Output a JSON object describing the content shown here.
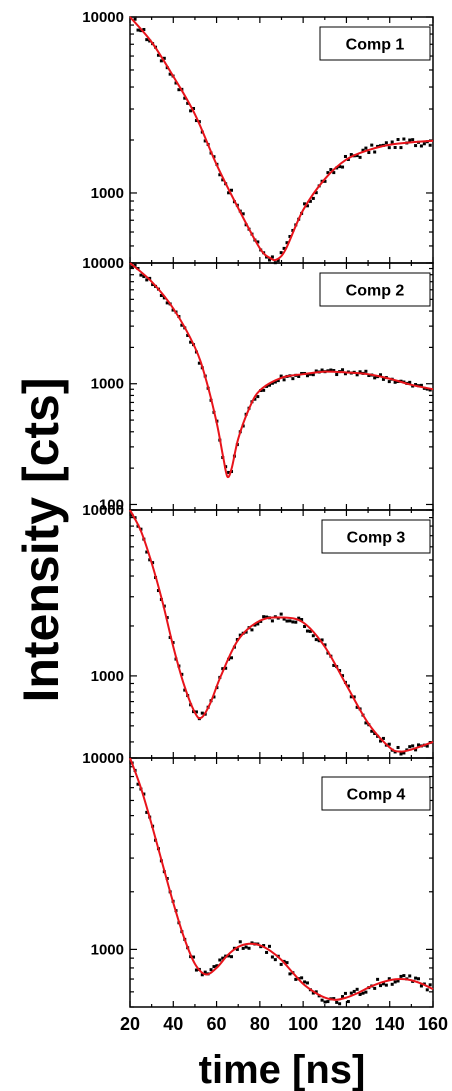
{
  "figure": {
    "ylabel": "Intensity [cts]",
    "xlabel": "time [ns]"
  },
  "style": {
    "fit_color": "#e8141b",
    "data_color": "#000000",
    "axis_color": "#000000"
  },
  "chart_data": [
    {
      "type": "line",
      "legend": "Comp 1",
      "xlim": [
        20,
        160
      ],
      "ylim": [
        400,
        10000
      ],
      "yscale": "log",
      "ytick_values": [
        1000,
        10000
      ],
      "ytick_labels": [
        "1000",
        "10000"
      ],
      "grid": false,
      "legend_position": "top-right",
      "x": [
        20,
        30,
        40,
        50,
        60,
        70,
        80,
        85,
        88,
        92,
        100,
        110,
        120,
        130,
        140,
        150,
        160
      ],
      "series": [
        {
          "values": [
            10000,
            7200,
            4600,
            2800,
            1450,
            820,
            485,
            425,
            420,
            480,
            800,
            1200,
            1550,
            1750,
            1880,
            1940,
            1980
          ]
        }
      ]
    },
    {
      "type": "line",
      "legend": "Comp 2",
      "xlim": [
        20,
        160
      ],
      "ylim": [
        90,
        10000
      ],
      "yscale": "log",
      "ytick_values": [
        100,
        1000,
        10000
      ],
      "ytick_labels": [
        "100",
        "1000",
        "10000"
      ],
      "grid": false,
      "legend_position": "top-right",
      "x": [
        20,
        30,
        40,
        50,
        55,
        60,
        63,
        65,
        67,
        70,
        75,
        80,
        90,
        100,
        110,
        120,
        130,
        140,
        150,
        160
      ],
      "series": [
        {
          "values": [
            10000,
            7000,
            4200,
            2000,
            1100,
            480,
            250,
            170,
            200,
            350,
            620,
            880,
            1120,
            1200,
            1260,
            1240,
            1200,
            1100,
            980,
            900
          ]
        }
      ]
    },
    {
      "type": "line",
      "legend": "Comp 3",
      "xlim": [
        20,
        160
      ],
      "ylim": [
        320,
        10000
      ],
      "yscale": "log",
      "ytick_values": [
        1000,
        10000
      ],
      "ytick_labels": [
        "1000",
        "10000"
      ],
      "grid": false,
      "legend_position": "top-right",
      "x": [
        20,
        25,
        30,
        35,
        40,
        45,
        50,
        53,
        57,
        62,
        70,
        80,
        90,
        100,
        110,
        120,
        130,
        140,
        145,
        150,
        160
      ],
      "series": [
        {
          "values": [
            10000,
            7500,
            4800,
            2800,
            1500,
            880,
            600,
            560,
            680,
            1000,
            1650,
            2150,
            2250,
            2100,
            1500,
            880,
            520,
            370,
            350,
            360,
            400
          ]
        }
      ]
    },
    {
      "type": "line",
      "legend": "Comp 4",
      "xlim": [
        20,
        160
      ],
      "ylim": [
        500,
        10000
      ],
      "yscale": "log",
      "ytick_values": [
        1000,
        10000
      ],
      "ytick_labels": [
        "1000",
        "10000"
      ],
      "grid": false,
      "legend_position": "top-right",
      "xtick_values": [
        20,
        40,
        60,
        80,
        100,
        120,
        140,
        160
      ],
      "xtick_labels": [
        "20",
        "40",
        "60",
        "80",
        "100",
        "120",
        "140",
        "160"
      ],
      "x": [
        20,
        25,
        30,
        35,
        40,
        45,
        50,
        55,
        60,
        65,
        70,
        75,
        80,
        85,
        90,
        95,
        100,
        105,
        110,
        115,
        120,
        125,
        130,
        135,
        140,
        145,
        150,
        155,
        160
      ],
      "series": [
        {
          "values": [
            10000,
            7000,
            4500,
            2800,
            1750,
            1150,
            840,
            740,
            800,
            930,
            1030,
            1070,
            1050,
            980,
            880,
            760,
            660,
            600,
            560,
            545,
            560,
            590,
            630,
            665,
            690,
            700,
            690,
            660,
            620
          ]
        }
      ]
    }
  ]
}
